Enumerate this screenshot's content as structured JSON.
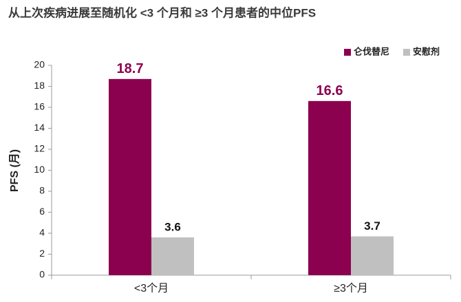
{
  "chart_data": {
    "type": "bar",
    "title": "从上次疾病进展至随机化 <3 个月和 ≥3 个月患者的中位PFS",
    "y_label": "PFS (月)",
    "categories": [
      "<3个月",
      "≥3个月"
    ],
    "series": [
      {
        "name": "仑伐替尼",
        "color": "#8c0050",
        "label_color": "#8c0050",
        "values": [
          18.7,
          16.6
        ]
      },
      {
        "name": "安慰剂",
        "color": "#c0c0c0",
        "label_color": "#111111",
        "values": [
          3.6,
          3.7
        ]
      }
    ],
    "ylim": [
      0,
      20
    ],
    "yticks": [
      0,
      2,
      4,
      6,
      8,
      10,
      12,
      14,
      16,
      18,
      20
    ],
    "legend": "top-right"
  }
}
